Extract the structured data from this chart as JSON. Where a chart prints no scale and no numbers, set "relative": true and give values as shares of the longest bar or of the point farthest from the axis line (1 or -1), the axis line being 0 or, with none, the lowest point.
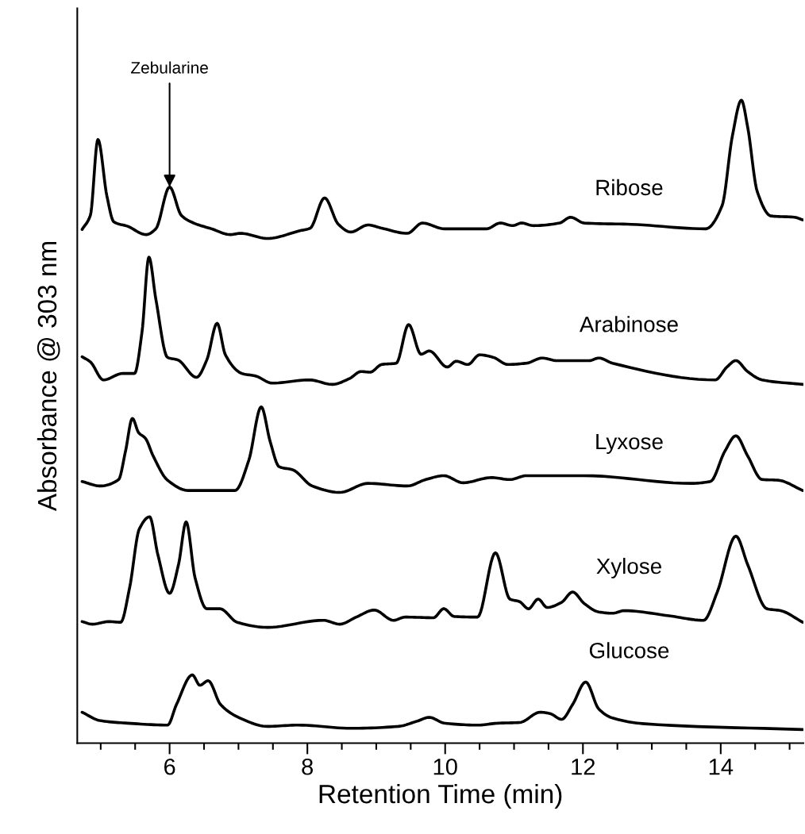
{
  "chart_data": {
    "type": "line",
    "relative": true,
    "xlabel": "Retention Time (min)",
    "ylabel": "Absorbance @ 303 nm",
    "xlim": [
      4.66,
      15.2
    ],
    "xticks": [
      {
        "value": 5,
        "label": null
      },
      {
        "value": 5.5,
        "label": null
      },
      6,
      {
        "value": 6.5,
        "label": null
      },
      {
        "value": 7,
        "label": null
      },
      {
        "value": 7.5,
        "label": null
      },
      8,
      {
        "value": 8.5,
        "label": null
      },
      {
        "value": 9,
        "label": null
      },
      {
        "value": 9.5,
        "label": null
      },
      10,
      {
        "value": 10.5,
        "label": null
      },
      {
        "value": 11,
        "label": null
      },
      {
        "value": 11.5,
        "label": null
      },
      12,
      {
        "value": 12.5,
        "label": null
      },
      {
        "value": 13,
        "label": null
      },
      {
        "value": 13.5,
        "label": null
      },
      14,
      {
        "value": 14.5,
        "label": null
      },
      {
        "value": 15,
        "label": null
      }
    ],
    "grid": false,
    "legend": false,
    "annotations": [
      {
        "text": "Zebularine",
        "x": 6.0,
        "y": 0.865
      }
    ],
    "series": [
      {
        "name": "Ribose",
        "color": "#000000",
        "x": [
          4.73,
          4.85,
          4.96,
          5.09,
          5.19,
          5.39,
          5.66,
          5.8,
          6.0,
          6.17,
          6.35,
          6.61,
          6.88,
          7.03,
          7.42,
          7.89,
          8.04,
          8.25,
          8.45,
          8.63,
          8.88,
          9.08,
          9.45,
          9.67,
          9.99,
          10.6,
          10.8,
          10.98,
          11.11,
          11.28,
          11.66,
          11.82,
          12.02,
          12.7,
          13.78,
          14.02,
          14.17,
          14.3,
          14.39,
          14.53,
          14.73,
          15.07,
          15.19
        ],
        "values": [
          0.799,
          0.821,
          0.939,
          0.851,
          0.811,
          0.804,
          0.791,
          0.8,
          0.865,
          0.821,
          0.809,
          0.8,
          0.791,
          0.793,
          0.785,
          0.797,
          0.801,
          0.848,
          0.807,
          0.795,
          0.806,
          0.801,
          0.793,
          0.809,
          0.8,
          0.8,
          0.809,
          0.805,
          0.809,
          0.805,
          0.809,
          0.818,
          0.809,
          0.807,
          0.8,
          0.836,
          0.945,
          1.0,
          0.959,
          0.858,
          0.82,
          0.818,
          0.814
        ]
      },
      {
        "name": "Arabinose",
        "color": "#000000",
        "x": [
          4.73,
          4.85,
          5.04,
          5.32,
          5.49,
          5.6,
          5.7,
          5.8,
          5.97,
          6.12,
          6.39,
          6.54,
          6.69,
          6.81,
          7.05,
          7.25,
          7.49,
          8.03,
          8.36,
          8.61,
          8.78,
          8.91,
          9.08,
          9.29,
          9.47,
          9.65,
          9.77,
          10.03,
          10.16,
          10.33,
          10.5,
          10.7,
          10.91,
          11.18,
          11.41,
          11.62,
          12.09,
          12.23,
          12.43,
          13.92,
          14.09,
          14.22,
          14.39,
          14.6,
          15.19
        ],
        "values": [
          0.601,
          0.593,
          0.565,
          0.575,
          0.575,
          0.64,
          0.756,
          0.691,
          0.6,
          0.596,
          0.569,
          0.596,
          0.653,
          0.604,
          0.575,
          0.571,
          0.56,
          0.565,
          0.558,
          0.567,
          0.578,
          0.577,
          0.589,
          0.591,
          0.651,
          0.605,
          0.61,
          0.585,
          0.594,
          0.589,
          0.604,
          0.6,
          0.589,
          0.591,
          0.599,
          0.595,
          0.595,
          0.599,
          0.591,
          0.565,
          0.585,
          0.595,
          0.578,
          0.565,
          0.558
        ]
      },
      {
        "name": "Lyxose",
        "color": "#000000",
        "x": [
          4.73,
          4.99,
          5.26,
          5.36,
          5.46,
          5.55,
          5.65,
          5.76,
          5.97,
          6.27,
          6.54,
          6.95,
          7.15,
          7.33,
          7.46,
          7.59,
          7.79,
          8.07,
          8.47,
          8.88,
          9.45,
          9.72,
          9.98,
          10.26,
          10.67,
          10.94,
          11.18,
          12.02,
          13.57,
          13.85,
          14.06,
          14.22,
          14.39,
          14.6,
          14.83,
          15.19
        ],
        "values": [
          0.407,
          0.4,
          0.41,
          0.454,
          0.505,
          0.483,
          0.474,
          0.447,
          0.409,
          0.393,
          0.393,
          0.393,
          0.44,
          0.523,
          0.469,
          0.43,
          0.425,
          0.4,
          0.39,
          0.404,
          0.4,
          0.41,
          0.416,
          0.405,
          0.413,
          0.41,
          0.416,
          0.416,
          0.404,
          0.407,
          0.454,
          0.478,
          0.447,
          0.41,
          0.409,
          0.393
        ]
      },
      {
        "name": "Xylose",
        "color": "#000000",
        "x": [
          4.73,
          4.88,
          5.12,
          5.29,
          5.42,
          5.56,
          5.71,
          5.83,
          6.0,
          6.13,
          6.24,
          6.37,
          6.54,
          6.73,
          6.98,
          7.42,
          8.23,
          8.47,
          8.71,
          8.97,
          9.25,
          9.42,
          9.83,
          9.98,
          10.13,
          10.47,
          10.73,
          10.94,
          11.08,
          11.21,
          11.35,
          11.48,
          11.69,
          11.85,
          12.02,
          12.23,
          12.43,
          12.6,
          13.25,
          13.75,
          13.95,
          14.22,
          14.39,
          14.67,
          14.87,
          15.19
        ],
        "values": [
          0.189,
          0.185,
          0.189,
          0.188,
          0.242,
          0.333,
          0.352,
          0.293,
          0.233,
          0.278,
          0.344,
          0.257,
          0.209,
          0.209,
          0.188,
          0.18,
          0.191,
          0.185,
          0.196,
          0.207,
          0.191,
          0.196,
          0.195,
          0.209,
          0.197,
          0.196,
          0.296,
          0.224,
          0.22,
          0.209,
          0.224,
          0.211,
          0.219,
          0.235,
          0.217,
          0.204,
          0.202,
          0.206,
          0.198,
          0.191,
          0.235,
          0.322,
          0.278,
          0.209,
          0.206,
          0.188
        ]
      },
      {
        "name": "Glucose",
        "color": "#000000",
        "x": [
          4.73,
          4.99,
          5.39,
          5.97,
          6.1,
          6.33,
          6.44,
          6.56,
          6.74,
          7.02,
          7.42,
          7.86,
          8.64,
          9.32,
          9.59,
          9.77,
          9.99,
          10.47,
          10.77,
          11.08,
          11.38,
          11.52,
          11.69,
          11.85,
          12.04,
          12.23,
          12.43,
          12.9,
          15.19
        ],
        "values": [
          0.048,
          0.035,
          0.031,
          0.028,
          0.06,
          0.106,
          0.09,
          0.097,
          0.06,
          0.039,
          0.026,
          0.028,
          0.023,
          0.026,
          0.034,
          0.04,
          0.031,
          0.028,
          0.031,
          0.032,
          0.048,
          0.046,
          0.037,
          0.06,
          0.095,
          0.053,
          0.039,
          0.03,
          0.021
        ]
      }
    ]
  }
}
